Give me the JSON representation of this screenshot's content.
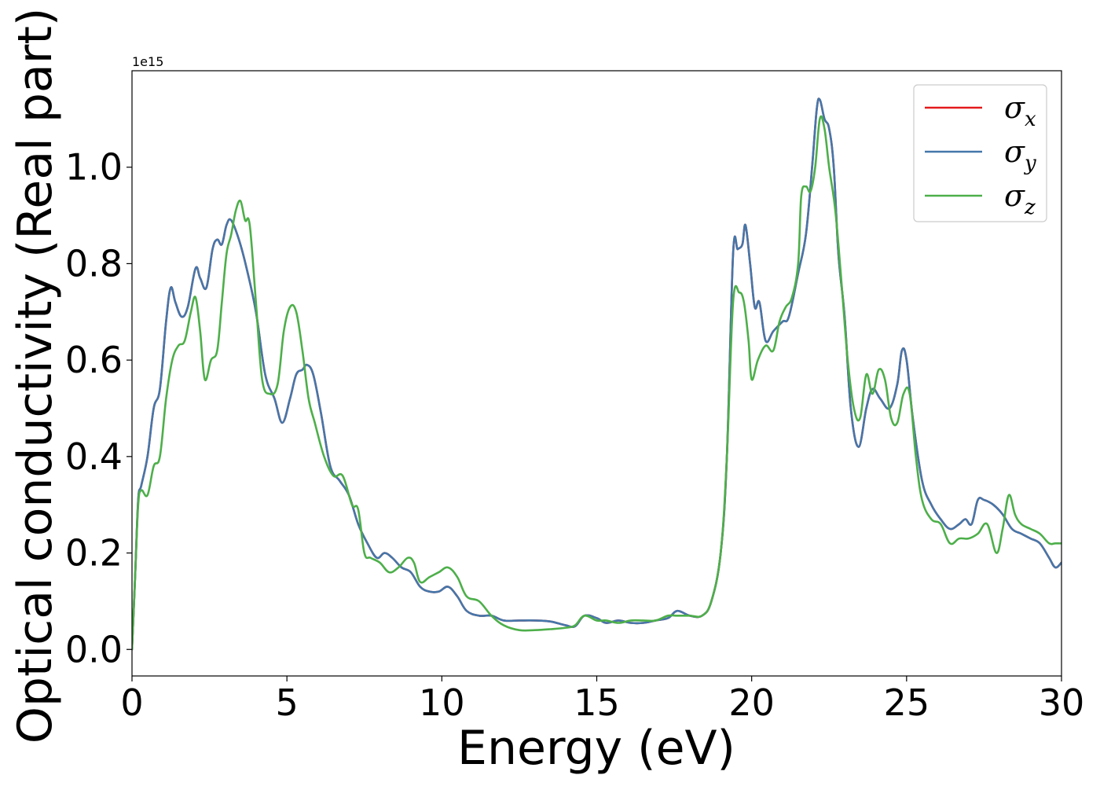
{
  "chart_data": {
    "type": "line",
    "title": "",
    "xlabel": "Energy (eV)",
    "ylabel": "Optical conductivity (Real part)",
    "y_offset_label": "1e15",
    "xlim": [
      0,
      30
    ],
    "ylim": [
      -0.055,
      1.2
    ],
    "xticks": [
      0,
      5,
      10,
      15,
      20,
      25,
      30
    ],
    "xtick_labels": [
      "0",
      "5",
      "10",
      "15",
      "20",
      "25",
      "30"
    ],
    "yticks": [
      0.0,
      0.2,
      0.4,
      0.6,
      0.8,
      1.0
    ],
    "ytick_labels": [
      "0.0",
      "0.2",
      "0.4",
      "0.6",
      "0.8",
      "1.0"
    ],
    "grid": false,
    "legend_position": "top-right",
    "series": [
      {
        "name": "σx",
        "legend_base": "σ",
        "legend_sub": "x",
        "color": "#e41a1c",
        "x": [
          0,
          0.1,
          0.2,
          0.3,
          0.5,
          0.7,
          0.9,
          1.1,
          1.25,
          1.4,
          1.6,
          1.8,
          2.05,
          2.2,
          2.4,
          2.6,
          2.75,
          2.9,
          3.05,
          3.2,
          3.45,
          3.7,
          4.0,
          4.3,
          4.6,
          4.85,
          5.1,
          5.3,
          5.5,
          5.65,
          5.85,
          6.1,
          6.4,
          6.7,
          7.0,
          7.3,
          7.6,
          7.9,
          8.15,
          8.4,
          8.7,
          9.0,
          9.3,
          9.6,
          9.9,
          10.2,
          10.5,
          10.8,
          11.2,
          11.6,
          12.0,
          12.5,
          13.0,
          13.5,
          14.0,
          14.3,
          14.6,
          15.0,
          15.3,
          15.7,
          16.1,
          16.5,
          16.9,
          17.3,
          17.6,
          18.0,
          18.4,
          18.7,
          19.0,
          19.2,
          19.4,
          19.55,
          19.7,
          19.8,
          19.95,
          20.1,
          20.25,
          20.45,
          20.7,
          21.0,
          21.2,
          21.5,
          21.75,
          21.95,
          22.1,
          22.2,
          22.35,
          22.5,
          22.65,
          22.8,
          23.0,
          23.2,
          23.45,
          23.7,
          23.9,
          24.15,
          24.45,
          24.7,
          24.85,
          25.0,
          25.2,
          25.5,
          25.8,
          26.1,
          26.4,
          26.7,
          26.9,
          27.1,
          27.3,
          27.5,
          27.8,
          28.1,
          28.4,
          28.7,
          29.0,
          29.3,
          29.6,
          29.8,
          30.0
        ],
        "y": [
          0.0,
          0.15,
          0.31,
          0.34,
          0.4,
          0.5,
          0.54,
          0.68,
          0.75,
          0.72,
          0.69,
          0.71,
          0.79,
          0.77,
          0.75,
          0.83,
          0.85,
          0.84,
          0.88,
          0.89,
          0.85,
          0.79,
          0.7,
          0.57,
          0.52,
          0.47,
          0.52,
          0.57,
          0.58,
          0.59,
          0.57,
          0.49,
          0.38,
          0.35,
          0.32,
          0.26,
          0.22,
          0.19,
          0.2,
          0.19,
          0.17,
          0.16,
          0.13,
          0.12,
          0.12,
          0.13,
          0.11,
          0.08,
          0.07,
          0.07,
          0.06,
          0.06,
          0.06,
          0.058,
          0.05,
          0.048,
          0.07,
          0.065,
          0.055,
          0.06,
          0.055,
          0.055,
          0.06,
          0.065,
          0.08,
          0.07,
          0.07,
          0.1,
          0.2,
          0.4,
          0.82,
          0.83,
          0.84,
          0.88,
          0.8,
          0.71,
          0.72,
          0.64,
          0.66,
          0.68,
          0.69,
          0.78,
          0.86,
          1.0,
          1.12,
          1.14,
          1.1,
          1.08,
          1.0,
          0.82,
          0.69,
          0.5,
          0.42,
          0.5,
          0.54,
          0.52,
          0.5,
          0.55,
          0.62,
          0.6,
          0.48,
          0.35,
          0.3,
          0.27,
          0.25,
          0.26,
          0.27,
          0.26,
          0.31,
          0.31,
          0.3,
          0.28,
          0.25,
          0.24,
          0.23,
          0.22,
          0.19,
          0.17,
          0.18
        ]
      },
      {
        "name": "σy",
        "legend_base": "σ",
        "legend_sub": "y",
        "color": "#4477aa",
        "x": [
          0,
          0.1,
          0.2,
          0.3,
          0.5,
          0.7,
          0.9,
          1.1,
          1.25,
          1.4,
          1.6,
          1.8,
          2.05,
          2.2,
          2.4,
          2.6,
          2.75,
          2.9,
          3.05,
          3.2,
          3.45,
          3.7,
          4.0,
          4.3,
          4.6,
          4.85,
          5.1,
          5.3,
          5.5,
          5.65,
          5.85,
          6.1,
          6.4,
          6.7,
          7.0,
          7.3,
          7.6,
          7.9,
          8.15,
          8.4,
          8.7,
          9.0,
          9.3,
          9.6,
          9.9,
          10.2,
          10.5,
          10.8,
          11.2,
          11.6,
          12.0,
          12.5,
          13.0,
          13.5,
          14.0,
          14.3,
          14.6,
          15.0,
          15.3,
          15.7,
          16.1,
          16.5,
          16.9,
          17.3,
          17.6,
          18.0,
          18.4,
          18.7,
          19.0,
          19.2,
          19.4,
          19.55,
          19.7,
          19.8,
          19.95,
          20.1,
          20.25,
          20.45,
          20.7,
          21.0,
          21.2,
          21.5,
          21.75,
          21.95,
          22.1,
          22.2,
          22.35,
          22.5,
          22.65,
          22.8,
          23.0,
          23.2,
          23.45,
          23.7,
          23.9,
          24.15,
          24.45,
          24.7,
          24.85,
          25.0,
          25.2,
          25.5,
          25.8,
          26.1,
          26.4,
          26.7,
          26.9,
          27.1,
          27.3,
          27.5,
          27.8,
          28.1,
          28.4,
          28.7,
          29.0,
          29.3,
          29.6,
          29.8,
          30.0
        ],
        "y": [
          0.0,
          0.15,
          0.31,
          0.34,
          0.4,
          0.5,
          0.54,
          0.68,
          0.75,
          0.72,
          0.69,
          0.71,
          0.79,
          0.77,
          0.75,
          0.83,
          0.85,
          0.84,
          0.88,
          0.89,
          0.85,
          0.79,
          0.7,
          0.57,
          0.52,
          0.47,
          0.52,
          0.57,
          0.58,
          0.59,
          0.57,
          0.49,
          0.38,
          0.35,
          0.32,
          0.26,
          0.22,
          0.19,
          0.2,
          0.19,
          0.17,
          0.16,
          0.13,
          0.12,
          0.12,
          0.13,
          0.11,
          0.08,
          0.07,
          0.07,
          0.06,
          0.06,
          0.06,
          0.058,
          0.05,
          0.048,
          0.07,
          0.065,
          0.055,
          0.06,
          0.055,
          0.055,
          0.06,
          0.065,
          0.08,
          0.07,
          0.07,
          0.1,
          0.2,
          0.4,
          0.82,
          0.83,
          0.84,
          0.88,
          0.8,
          0.71,
          0.72,
          0.64,
          0.66,
          0.68,
          0.69,
          0.78,
          0.86,
          1.0,
          1.12,
          1.14,
          1.1,
          1.08,
          1.0,
          0.82,
          0.69,
          0.5,
          0.42,
          0.5,
          0.54,
          0.52,
          0.5,
          0.55,
          0.62,
          0.6,
          0.48,
          0.35,
          0.3,
          0.27,
          0.25,
          0.26,
          0.27,
          0.26,
          0.31,
          0.31,
          0.3,
          0.28,
          0.25,
          0.24,
          0.23,
          0.22,
          0.19,
          0.17,
          0.18
        ]
      },
      {
        "name": "σz",
        "legend_base": "σ",
        "legend_sub": "z",
        "color": "#4daf4a",
        "x": [
          0,
          0.1,
          0.2,
          0.3,
          0.5,
          0.7,
          0.9,
          1.1,
          1.3,
          1.5,
          1.7,
          1.9,
          2.05,
          2.2,
          2.35,
          2.55,
          2.75,
          2.9,
          3.05,
          3.2,
          3.35,
          3.5,
          3.65,
          3.8,
          4.0,
          4.2,
          4.45,
          4.7,
          4.9,
          5.1,
          5.3,
          5.5,
          5.7,
          5.9,
          6.2,
          6.5,
          6.8,
          7.1,
          7.3,
          7.5,
          7.7,
          8.0,
          8.3,
          8.6,
          8.9,
          9.1,
          9.3,
          9.6,
          9.9,
          10.2,
          10.5,
          10.8,
          11.2,
          11.6,
          12.0,
          12.5,
          13.0,
          13.5,
          14.0,
          14.3,
          14.6,
          15.0,
          15.3,
          15.7,
          16.1,
          16.5,
          16.9,
          17.3,
          17.6,
          18.0,
          18.4,
          18.7,
          19.0,
          19.2,
          19.4,
          19.6,
          19.75,
          19.9,
          20.0,
          20.2,
          20.45,
          20.7,
          20.9,
          21.1,
          21.3,
          21.5,
          21.6,
          21.75,
          21.9,
          22.05,
          22.2,
          22.35,
          22.5,
          22.7,
          22.9,
          23.1,
          23.3,
          23.5,
          23.7,
          23.9,
          24.1,
          24.3,
          24.5,
          24.7,
          24.9,
          25.1,
          25.3,
          25.5,
          25.8,
          26.1,
          26.4,
          26.7,
          27.0,
          27.3,
          27.6,
          27.9,
          28.1,
          28.3,
          28.5,
          28.7,
          29.0,
          29.3,
          29.6,
          29.8,
          30.0
        ],
        "y": [
          0.0,
          0.15,
          0.3,
          0.33,
          0.32,
          0.38,
          0.4,
          0.52,
          0.6,
          0.63,
          0.64,
          0.7,
          0.73,
          0.66,
          0.56,
          0.6,
          0.62,
          0.72,
          0.82,
          0.86,
          0.91,
          0.93,
          0.89,
          0.88,
          0.72,
          0.56,
          0.53,
          0.55,
          0.66,
          0.71,
          0.7,
          0.62,
          0.52,
          0.47,
          0.4,
          0.36,
          0.36,
          0.3,
          0.29,
          0.2,
          0.19,
          0.18,
          0.16,
          0.17,
          0.19,
          0.18,
          0.14,
          0.15,
          0.16,
          0.17,
          0.15,
          0.11,
          0.1,
          0.07,
          0.05,
          0.04,
          0.04,
          0.042,
          0.045,
          0.05,
          0.07,
          0.06,
          0.06,
          0.055,
          0.06,
          0.06,
          0.06,
          0.07,
          0.07,
          0.07,
          0.07,
          0.1,
          0.2,
          0.4,
          0.72,
          0.74,
          0.72,
          0.64,
          0.56,
          0.6,
          0.63,
          0.62,
          0.68,
          0.71,
          0.73,
          0.8,
          0.94,
          0.96,
          0.95,
          1.0,
          1.1,
          1.08,
          1.0,
          0.91,
          0.76,
          0.6,
          0.5,
          0.48,
          0.57,
          0.53,
          0.58,
          0.56,
          0.48,
          0.47,
          0.53,
          0.53,
          0.4,
          0.31,
          0.27,
          0.26,
          0.22,
          0.23,
          0.23,
          0.24,
          0.26,
          0.2,
          0.25,
          0.32,
          0.28,
          0.26,
          0.25,
          0.24,
          0.22,
          0.22,
          0.22
        ]
      }
    ]
  }
}
